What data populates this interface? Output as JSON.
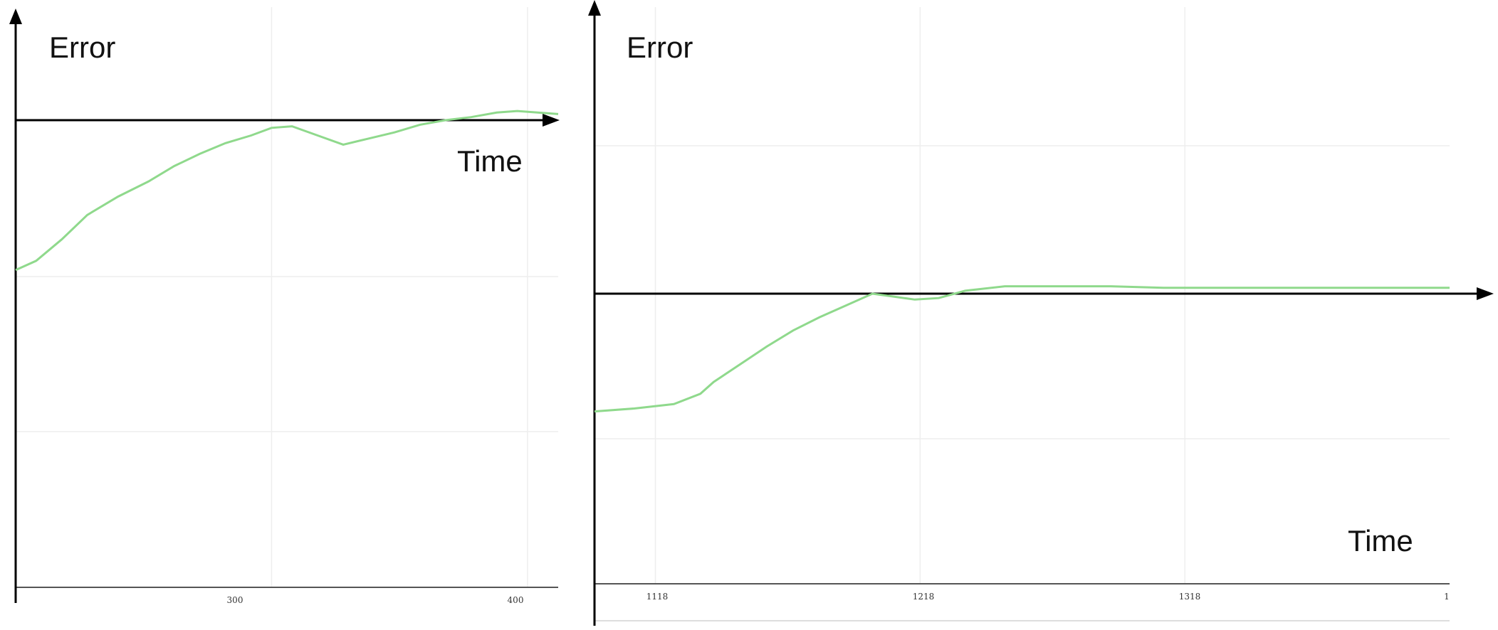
{
  "colors": {
    "line": "#8fd98c",
    "axis": "#000000",
    "grid": "#eeeeee",
    "frame": "#555555"
  },
  "chart_data": [
    {
      "type": "line",
      "ylabel": "Error",
      "xlabel": "Time",
      "xlim": [
        200,
        412
      ],
      "x_ticks": [
        "300",
        "400"
      ],
      "grid": true,
      "series": [
        {
          "x": [
            200,
            208,
            218,
            228,
            240,
            252,
            262,
            272,
            282,
            292,
            300,
            308,
            318,
            328,
            338,
            348,
            358,
            368,
            378,
            388,
            396,
            404,
            412
          ],
          "y": [
            -0.98,
            -0.92,
            -0.78,
            -0.62,
            -0.5,
            -0.4,
            -0.3,
            -0.22,
            -0.15,
            -0.1,
            -0.05,
            -0.04,
            -0.1,
            -0.16,
            -0.12,
            -0.08,
            -0.03,
            0.0,
            0.02,
            0.05,
            0.06,
            0.05,
            0.04
          ]
        }
      ]
    },
    {
      "type": "line",
      "ylabel": "Error",
      "xlabel": "Time",
      "xlim": [
        1095,
        1418
      ],
      "x_ticks": [
        "1118",
        "1218",
        "1318",
        "1"
      ],
      "grid": true,
      "series": [
        {
          "x": [
            1095,
            1110,
            1125,
            1135,
            1140,
            1150,
            1160,
            1170,
            1180,
            1190,
            1200,
            1208,
            1216,
            1225,
            1235,
            1250,
            1270,
            1290,
            1310,
            1340,
            1370,
            1400,
            1418
          ],
          "y": [
            -0.8,
            -0.78,
            -0.75,
            -0.68,
            -0.6,
            -0.48,
            -0.36,
            -0.25,
            -0.16,
            -0.08,
            0.0,
            -0.02,
            -0.04,
            -0.03,
            0.02,
            0.05,
            0.05,
            0.05,
            0.04,
            0.04,
            0.04,
            0.04,
            0.04
          ]
        }
      ]
    }
  ]
}
